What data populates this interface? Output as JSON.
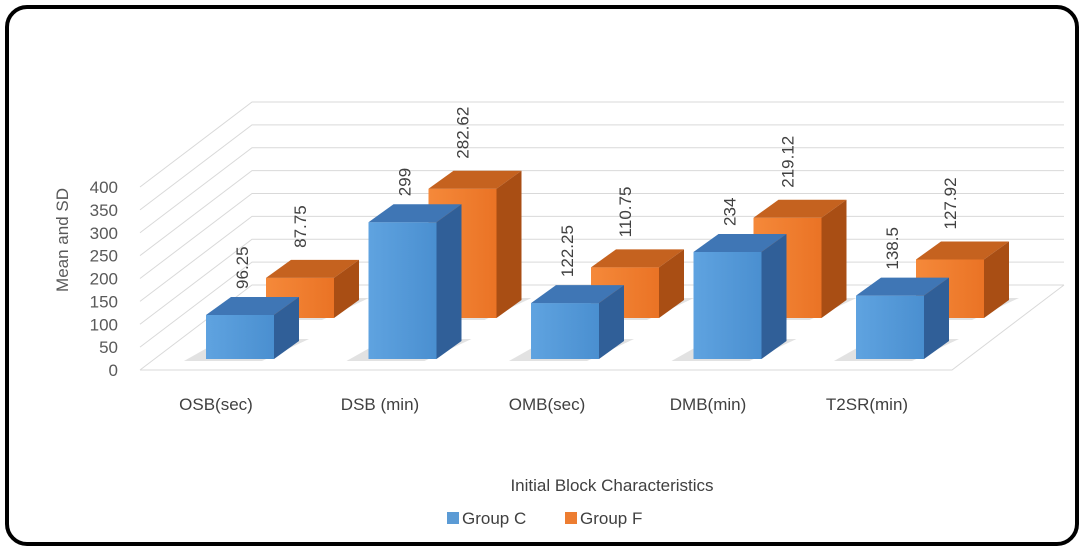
{
  "chart_data": {
    "type": "bar",
    "title": "",
    "xlabel": "Initial Block Characteristics",
    "ylabel": "Mean and SD",
    "ylim": [
      0,
      400
    ],
    "yticks": [
      "0",
      "50",
      "100",
      "150",
      "200",
      "250",
      "300",
      "350",
      "400"
    ],
    "categories": [
      "OSB(sec)",
      "DSB (min)",
      "OMB(sec)",
      "DMB(min)",
      "T2SR(min)"
    ],
    "series": [
      {
        "name": "Group C",
        "values": [
          96.25,
          299,
          122.25,
          234,
          138.5
        ],
        "labels": [
          "96.25",
          "299",
          "122.25",
          "234",
          "138.5"
        ],
        "color": "#5b9bd5"
      },
      {
        "name": "Group F",
        "values": [
          87.75,
          282.62,
          110.75,
          219.12,
          127.92
        ],
        "labels": [
          "87.75",
          "282.62",
          "110.75",
          "219.12",
          "127.92"
        ],
        "color": "#ed7d31"
      }
    ],
    "legend_position": "bottom",
    "grid": true,
    "style": "3d-clustered-column"
  }
}
